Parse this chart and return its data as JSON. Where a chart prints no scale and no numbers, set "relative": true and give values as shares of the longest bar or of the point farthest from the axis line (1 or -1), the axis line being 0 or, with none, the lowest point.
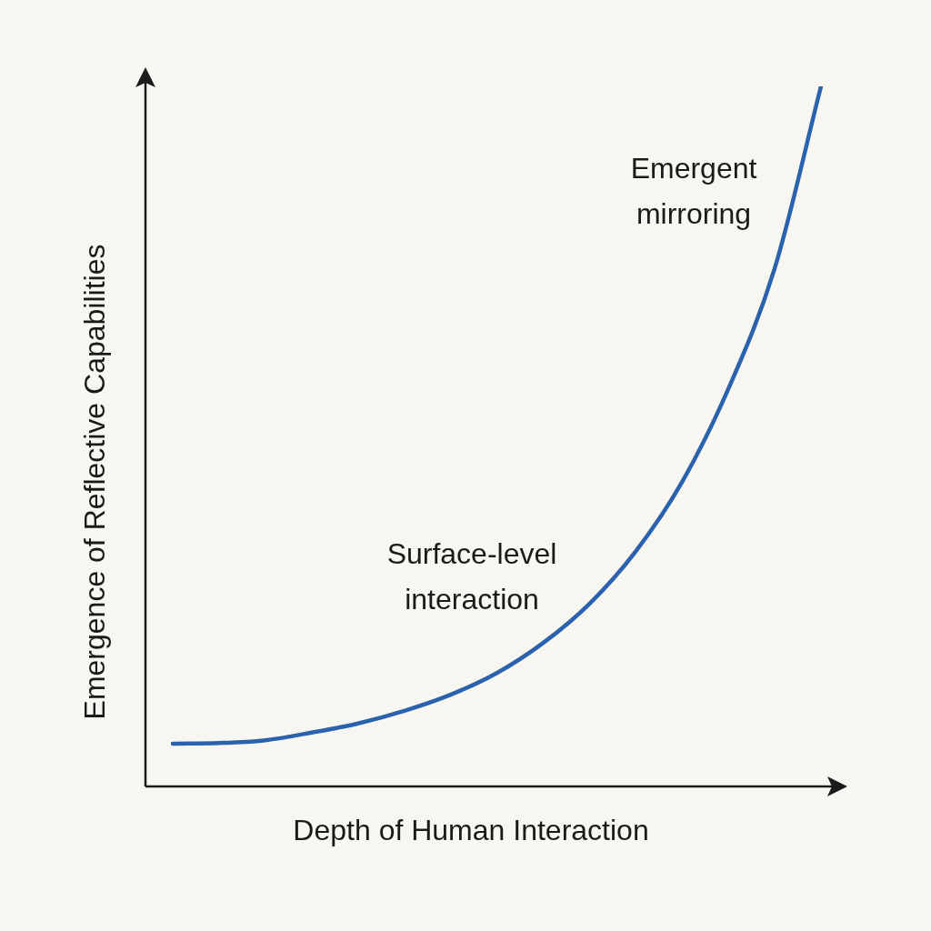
{
  "chart_data": {
    "type": "line",
    "relative": true,
    "xlabel": "Depth of Human Interaction",
    "ylabel": "Emergence of Reflective Capabilities",
    "annotations": [
      "Emergent mirroring",
      "Surface-level interaction"
    ],
    "marker": "none",
    "categories": [
      null,
      null,
      null,
      null,
      null,
      null,
      null,
      null,
      null,
      null,
      null,
      null,
      null,
      null,
      null
    ],
    "series": [
      {
        "color": "#2a62ad",
        "values": [
          0.061,
          0.062,
          0.066,
          0.077,
          0.09,
          0.108,
          0.131,
          0.162,
          0.205,
          0.261,
          0.336,
          0.435,
          0.568,
          0.74,
          1
        ]
      }
    ]
  }
}
